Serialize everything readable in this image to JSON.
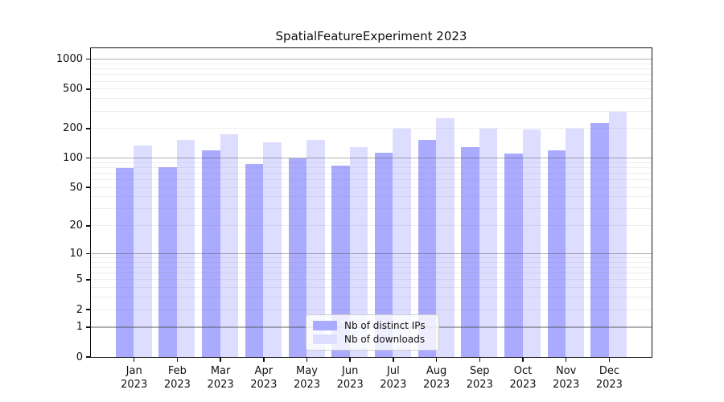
{
  "title": "SpatialFeatureExperiment 2023",
  "chart_data": {
    "type": "bar",
    "title": "SpatialFeatureExperiment 2023",
    "categories": [
      "Jan",
      "Feb",
      "Mar",
      "Apr",
      "May",
      "Jun",
      "Jul",
      "Aug",
      "Sep",
      "Oct",
      "Nov",
      "Dec"
    ],
    "year_label": "2023",
    "series": [
      {
        "name": "Nb of distinct IPs",
        "color": "#aaaaff",
        "values": [
          78,
          80,
          119,
          87,
          99,
          83,
          113,
          151,
          128,
          110,
          119,
          223
        ]
      },
      {
        "name": "Nb of downloads",
        "color": "#ddddff",
        "values": [
          133,
          153,
          173,
          144,
          152,
          127,
          197,
          252,
          198,
          193,
          199,
          290
        ]
      }
    ],
    "xlabel": "",
    "ylabel": "",
    "yscale": "log1p",
    "yticks": [
      0,
      1,
      2,
      5,
      10,
      20,
      50,
      100,
      200,
      500,
      1000
    ],
    "ylim": [
      0,
      1276
    ],
    "grid": "horizontal major+minor, drawn above bars",
    "legend_position": "lower center inside plot",
    "colors": {
      "bar_distinct_ips": "#aaaaff",
      "bar_downloads": "#ddddff",
      "major_grid": "#a9a9a9",
      "minor_grid": "#e8e8e8",
      "spine": "#111111",
      "text": "#111111",
      "legend_border": "#cccccc"
    }
  }
}
